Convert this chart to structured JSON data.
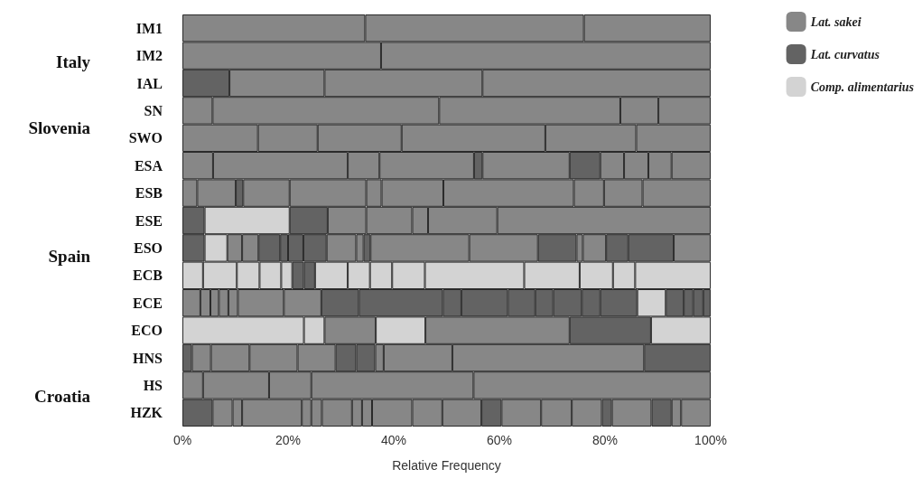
{
  "chart_data": {
    "type": "bar",
    "orientation": "horizontal",
    "stacked": true,
    "categories": [
      "IM1",
      "IM2",
      "IAL",
      "SN",
      "SWO",
      "ESA",
      "ESB",
      "ESE",
      "ESO",
      "ECB",
      "ECE",
      "ECO",
      "HNS",
      "HS",
      "HZK"
    ],
    "xlabel": "Relative Frequency",
    "xlim": [
      0,
      100
    ],
    "xticks": [
      {
        "value": 0,
        "label": "0%"
      },
      {
        "value": 20,
        "label": "20%"
      },
      {
        "value": 40,
        "label": "40%"
      },
      {
        "value": 60,
        "label": "60%"
      },
      {
        "value": 80,
        "label": "80%"
      },
      {
        "value": 100,
        "label": "100%"
      }
    ],
    "grid": false,
    "legend": "top right",
    "annotations": [
      "Italy",
      "Slovenia",
      "Spain",
      "Croatia"
    ],
    "series": [
      {
        "name": "Lat. sakei",
        "color": "#878787",
        "values": [
          null,
          null,
          null,
          null,
          null,
          null,
          null,
          null,
          null,
          null,
          null,
          null,
          null,
          null,
          null
        ]
      },
      {
        "name": "Lat. curvatus",
        "color": "#636363",
        "values": [
          null,
          null,
          null,
          null,
          null,
          null,
          null,
          null,
          null,
          null,
          null,
          null,
          null,
          null,
          null
        ]
      },
      {
        "name": "Comp. alimentarius",
        "color": "#d3d3d3",
        "values": [
          null,
          null,
          null,
          null,
          null,
          null,
          null,
          null,
          null,
          null,
          null,
          null,
          null,
          null,
          null
        ]
      },
      {
        "values": [
          34.6,
          37.6,
          8.9,
          5.7,
          14.3,
          5.8,
          2.8,
          4.2,
          4.2,
          3.9,
          3.4,
          23.0,
          1.8,
          3.9,
          5.7
        ],
        "colors": [
          "#878787",
          "#878787",
          "#636363",
          "#878787",
          "#878787",
          "#878787",
          "#878787",
          "#636363",
          "#636363",
          "#d3d3d3",
          "#878787",
          "#d3d3d3",
          "#636363",
          "#878787",
          "#636363"
        ]
      },
      {
        "values": [
          41.4,
          62.4,
          18.0,
          42.9,
          11.3,
          25.5,
          7.3,
          16.1,
          4.3,
          6.4,
          1.9,
          3.9,
          3.6,
          12.5,
          3.8
        ],
        "colors": [
          "#878787",
          "#878787",
          "#878787",
          "#878787",
          "#878787",
          "#878787",
          "#878787",
          "#d3d3d3",
          "#d3d3d3",
          "#d3d3d3",
          "#878787",
          "#d3d3d3",
          "#878787",
          "#878787",
          "#878787"
        ]
      },
      {
        "values": [
          24.0,
          null,
          29.9,
          34.3,
          15.9,
          6.0,
          1.4,
          7.2,
          2.8,
          4.3,
          1.6,
          9.7,
          7.3,
          8.0,
          1.8
        ],
        "colors": [
          "#878787",
          null,
          "#878787",
          "#878787",
          "#878787",
          "#878787",
          "#636363",
          "#636363",
          "#878787",
          "#d3d3d3",
          "#878787",
          "#878787",
          "#878787",
          "#878787",
          "#878787"
        ]
      },
      {
        "values": [
          null,
          null,
          43.2,
          7.2,
          27.2,
          17.9,
          8.8,
          7.3,
          3.1,
          4.1,
          1.8,
          9.4,
          9.1,
          30.7,
          11.3
        ],
        "colors": [
          null,
          null,
          "#878787",
          "#878787",
          "#878787",
          "#878787",
          "#878787",
          "#878787",
          "#878787",
          "#d3d3d3",
          "#878787",
          "#d3d3d3",
          "#878787",
          "#878787",
          "#878787"
        ]
      },
      {
        "values": [
          null,
          null,
          null,
          9.9,
          17.2,
          1.6,
          14.5,
          8.7,
          4.1,
          2.1,
          1.8,
          27.3,
          7.2,
          44.9,
          1.8
        ],
        "colors": [
          null,
          null,
          null,
          "#878787",
          "#878787",
          "#636363",
          "#878787",
          "#878787",
          "#636363",
          "#d3d3d3",
          "#878787",
          "#878787",
          "#878787",
          "#878787",
          "#878787"
        ]
      },
      {
        "values": [
          null,
          null,
          null,
          null,
          14.1,
          16.5,
          2.9,
          3.0,
          1.5,
          2.2,
          8.7,
          15.4,
          3.9,
          null,
          2.0
        ],
        "colors": [
          null,
          null,
          null,
          null,
          "#878787",
          "#878787",
          "#878787",
          "#878787",
          "#636363",
          "#636363",
          "#878787",
          "#636363",
          "#636363",
          null,
          "#878787"
        ]
      },
      {
        "values": [
          null,
          null,
          null,
          null,
          null,
          5.8,
          11.7,
          13.1,
          2.9,
          2.1,
          7.1,
          11.3,
          3.6,
          null,
          5.7
        ],
        "colors": [
          null,
          null,
          null,
          null,
          null,
          "#636363",
          "#878787",
          "#878787",
          "#636363",
          "#636363",
          "#878787",
          "#d3d3d3",
          "#636363",
          null,
          "#878787"
        ]
      },
      {
        "values": [
          null,
          null,
          null,
          null,
          null,
          4.5,
          24.7,
          40.4,
          4.4,
          6.2,
          7.1,
          null,
          1.6,
          null,
          1.9
        ],
        "colors": [
          null,
          null,
          null,
          null,
          null,
          "#878787",
          "#878787",
          "#878787",
          "#636363",
          "#d3d3d3",
          "#636363",
          null,
          "#878787",
          null,
          "#878787"
        ]
      },
      {
        "values": [
          null,
          null,
          null,
          null,
          null,
          4.6,
          5.7,
          null,
          5.6,
          4.2,
          15.9,
          null,
          13.0,
          null,
          1.9
        ],
        "colors": [
          null,
          null,
          null,
          null,
          null,
          "#878787",
          "#878787",
          null,
          "#878787",
          "#d3d3d3",
          "#636363",
          null,
          "#878787",
          null,
          "#878787"
        ]
      },
      {
        "values": [
          null,
          null,
          null,
          null,
          null,
          4.4,
          7.3,
          null,
          1.4,
          4.2,
          3.5,
          null,
          36.3,
          null,
          7.6
        ],
        "colors": [
          null,
          null,
          null,
          null,
          null,
          "#878787",
          "#878787",
          null,
          "#878787",
          "#d3d3d3",
          "#636363",
          null,
          "#878787",
          null,
          "#878787"
        ]
      },
      {
        "values": [
          null,
          null,
          null,
          null,
          null,
          7.4,
          12.9,
          null,
          1.3,
          6.2,
          8.8,
          null,
          12.6,
          null,
          5.7
        ],
        "colors": [
          null,
          null,
          null,
          null,
          null,
          "#878787",
          "#878787",
          null,
          "#636363",
          "#d3d3d3",
          "#636363",
          null,
          "#636363",
          null,
          "#878787"
        ]
      },
      {
        "values": [
          null,
          null,
          null,
          null,
          null,
          null,
          null,
          null,
          18.7,
          18.8,
          5.2,
          null,
          null,
          null,
          7.4
        ],
        "colors": [
          null,
          null,
          null,
          null,
          null,
          null,
          null,
          null,
          "#878787",
          "#d3d3d3",
          "#636363",
          null,
          null,
          null,
          "#878787"
        ]
      },
      {
        "values": [
          null,
          null,
          null,
          null,
          null,
          null,
          null,
          null,
          13.0,
          10.5,
          3.4,
          null,
          null,
          null,
          3.8
        ],
        "colors": [
          null,
          null,
          null,
          null,
          null,
          null,
          null,
          null,
          "#878787",
          "#d3d3d3",
          "#636363",
          null,
          null,
          null,
          "#636363"
        ]
      },
      {
        "values": [
          null,
          null,
          null,
          null,
          null,
          null,
          null,
          null,
          7.3,
          6.3,
          5.4,
          null,
          null,
          null,
          7.5
        ],
        "colors": [
          null,
          null,
          null,
          null,
          null,
          null,
          null,
          null,
          "#636363",
          "#d3d3d3",
          "#636363",
          null,
          null,
          null,
          "#878787"
        ]
      },
      {
        "values": [
          null,
          null,
          null,
          null,
          null,
          null,
          null,
          null,
          1.2,
          4.2,
          3.5,
          null,
          null,
          null,
          5.8
        ],
        "colors": [
          null,
          null,
          null,
          null,
          null,
          null,
          null,
          null,
          "#878787",
          "#d3d3d3",
          "#636363",
          null,
          null,
          null,
          "#878787"
        ]
      },
      {
        "values": [
          null,
          null,
          null,
          null,
          null,
          null,
          null,
          null,
          4.4,
          14.3,
          7.0,
          null,
          null,
          null,
          5.7
        ],
        "colors": [
          null,
          null,
          null,
          null,
          null,
          null,
          null,
          null,
          "#878787",
          "#d3d3d3",
          "#636363",
          null,
          null,
          null,
          "#878787"
        ]
      },
      {
        "values": [
          null,
          null,
          null,
          null,
          null,
          null,
          null,
          null,
          4.2,
          null,
          5.4,
          null,
          null,
          null,
          1.9
        ],
        "colors": [
          null,
          null,
          null,
          null,
          null,
          null,
          null,
          null,
          "#636363",
          null,
          "#d3d3d3",
          null,
          null,
          null,
          "#636363"
        ]
      },
      {
        "values": [
          null,
          null,
          null,
          null,
          null,
          null,
          null,
          null,
          8.6,
          null,
          3.4,
          null,
          null,
          null,
          7.5
        ],
        "colors": [
          null,
          null,
          null,
          null,
          null,
          null,
          null,
          null,
          "#636363",
          null,
          "#636363",
          null,
          null,
          null,
          "#878787"
        ]
      },
      {
        "values": [
          null,
          null,
          null,
          null,
          null,
          null,
          null,
          null,
          7.0,
          null,
          1.8,
          null,
          null,
          null,
          3.8
        ],
        "colors": [
          null,
          null,
          null,
          null,
          null,
          null,
          null,
          null,
          "#878787",
          null,
          "#636363",
          null,
          null,
          null,
          "#636363"
        ]
      },
      {
        "values": [
          null,
          null,
          null,
          null,
          null,
          null,
          null,
          null,
          null,
          null,
          1.9,
          null,
          null,
          null,
          1.8
        ],
        "colors": [
          null,
          null,
          null,
          null,
          null,
          null,
          null,
          null,
          null,
          null,
          "#636363",
          null,
          null,
          null,
          "#878787"
        ]
      },
      {
        "values": [
          null,
          null,
          null,
          null,
          null,
          null,
          null,
          null,
          null,
          null,
          1.4,
          null,
          null,
          null,
          5.6
        ],
        "colors": [
          null,
          null,
          null,
          null,
          null,
          null,
          null,
          null,
          null,
          null,
          "#636363",
          null,
          null,
          null,
          "#878787"
        ]
      }
    ]
  }
}
